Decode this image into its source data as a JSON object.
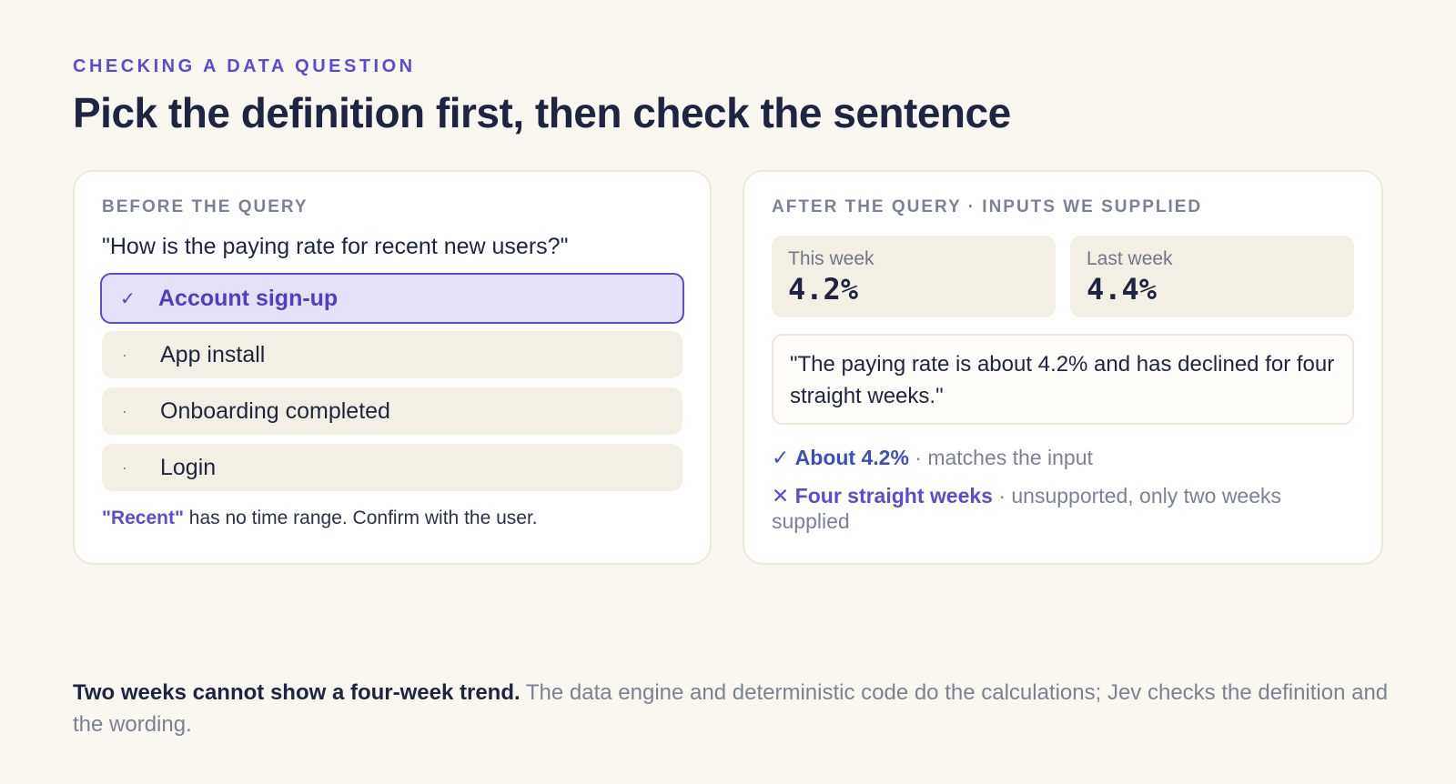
{
  "eyebrow": "CHECKING A DATA QUESTION",
  "headline": "Pick the definition first, then check the sentence",
  "left_card": {
    "label": "BEFORE THE QUERY",
    "question": "\"How is the paying rate for recent new users?\"",
    "options": [
      {
        "mark": "✓",
        "label": "Account sign-up",
        "selected": true
      },
      {
        "mark": "·",
        "label": "App install",
        "selected": false
      },
      {
        "mark": "·",
        "label": "Onboarding completed",
        "selected": false
      },
      {
        "mark": "·",
        "label": "Login",
        "selected": false
      }
    ],
    "note_highlight": "\"Recent\"",
    "note_text": " has no time range. Confirm with the user."
  },
  "right_card": {
    "label": "AFTER THE QUERY · INPUTS WE SUPPLIED",
    "inputs": [
      {
        "label": "This week",
        "value": "4.2%"
      },
      {
        "label": "Last week",
        "value": "4.4%"
      }
    ],
    "quote": "\"The paying rate is about 4.2% and has declined for four straight weeks.\"",
    "checks": [
      {
        "icon": "✓",
        "strong": "About 4.2%",
        "detail": " · matches the input"
      },
      {
        "icon": "✕",
        "strong": "Four straight weeks",
        "detail": " · unsupported, only two weeks supplied"
      }
    ]
  },
  "footer": {
    "strong": "Two weeks cannot show a four-week trend.",
    "text": " The data engine and deterministic code do the calculations; Jev checks the definition and the wording."
  }
}
